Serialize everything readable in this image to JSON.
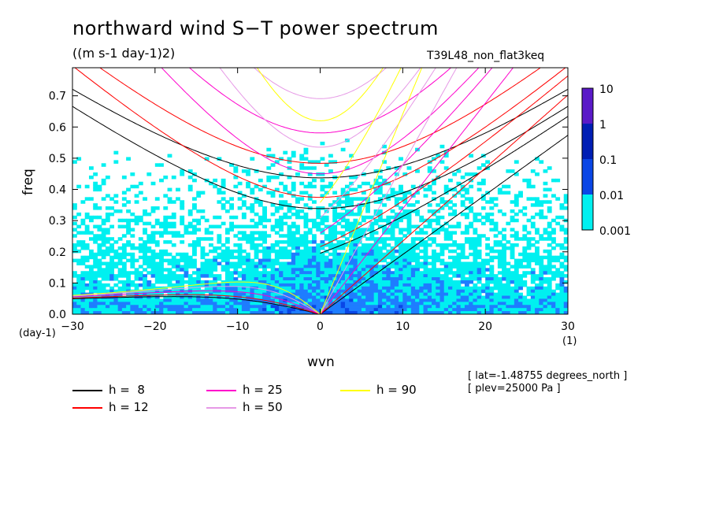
{
  "header": {
    "title": "northward wind S−T power spectrum",
    "units": "((m s-1 day-1)2)",
    "run": "T39L48_non_flat3keq"
  },
  "axis_units": {
    "y": "(day-1)",
    "x": "(1)"
  },
  "info": {
    "lat": "[ lat=-1.48755 degrees_north ]",
    "plev": "[ plev=25000 Pa ]"
  },
  "legend": [
    {
      "label": "h =  8",
      "color": "#000000"
    },
    {
      "label": "h = 12",
      "color": "#ff0000"
    },
    {
      "label": "h = 25",
      "color": "#ff00cc"
    },
    {
      "label": "h = 50",
      "color": "#e699e6"
    },
    {
      "label": "h = 90",
      "color": "#ffff00"
    }
  ],
  "colorbar": {
    "labels": [
      "10",
      "1",
      "0.1",
      "0.01",
      "0.001"
    ],
    "colors": [
      "#5a19c8",
      "#001eb4",
      "#0a46e6",
      "#1e7dff",
      "#00f0f0"
    ]
  },
  "chart_data": {
    "type": "heatmap",
    "xlabel": "wvn",
    "ylabel": "freq",
    "xlim": [
      -30,
      30
    ],
    "ylim": [
      0,
      0.79
    ],
    "xticks": [
      -30,
      -20,
      -10,
      0,
      10,
      20,
      30
    ],
    "yticks": [
      0.0,
      0.1,
      0.2,
      0.3,
      0.4,
      0.5,
      0.6,
      0.7
    ],
    "ytick_labels": [
      "0.0",
      "0.1",
      "0.2",
      "0.3",
      "0.4",
      "0.5",
      "0.6",
      "0.7"
    ],
    "color_levels": [
      0.001,
      0.01,
      0.1,
      1,
      10
    ],
    "dispersion_curves": [
      {
        "name": "h =  8",
        "h": 8,
        "color": "#000000"
      },
      {
        "name": "h = 12",
        "h": 12,
        "color": "#ff0000"
      },
      {
        "name": "h = 25",
        "h": 25,
        "color": "#ff00cc"
      },
      {
        "name": "h = 50",
        "h": 50,
        "color": "#e699e6"
      },
      {
        "name": "h = 90",
        "h": 90,
        "color": "#ffff00"
      }
    ]
  }
}
